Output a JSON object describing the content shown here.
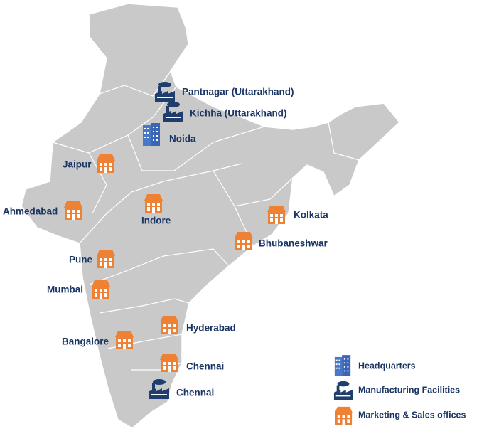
{
  "locations": [
    "Pantnagar (Uttarakhand)",
    "Kichha (Uttarakhand)",
    "Noida",
    "Jaipur",
    "Ahmedabad",
    "Indore",
    "Kolkata",
    "Bhubaneshwar",
    "Pune",
    "Mumbai",
    "Hyderabad",
    "Bangalore",
    "Chennai",
    "Chennai"
  ],
  "legend": [
    "Headquarters",
    "Manufacturing Facilities",
    "Marketing & Sales offices"
  ]
}
